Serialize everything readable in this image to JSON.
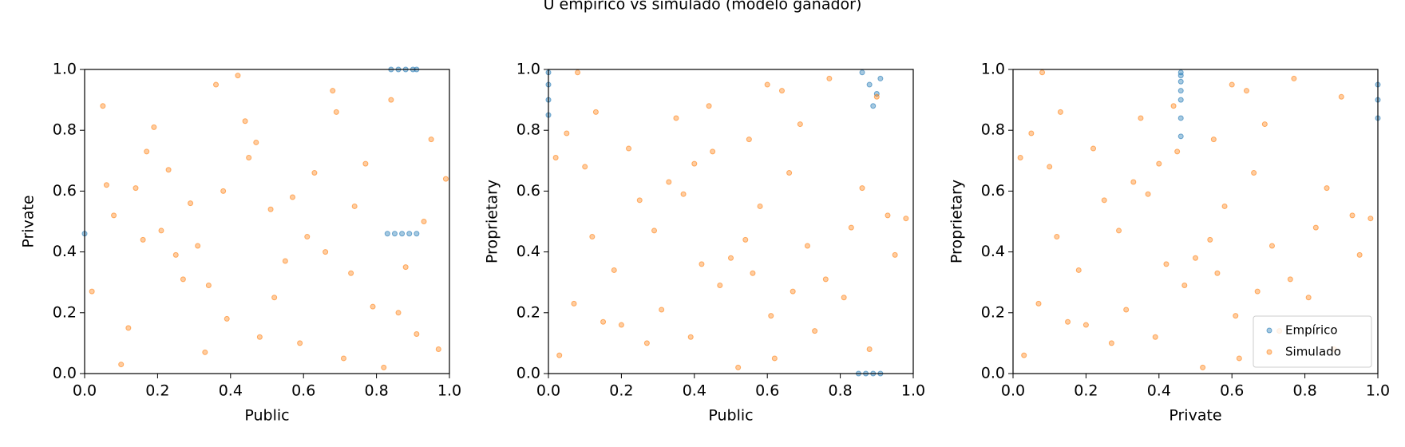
{
  "title": "U empírico vs simulado (modelo ganador)",
  "chart_data": [
    {
      "type": "scatter",
      "xlabel": "Public",
      "ylabel": "Private",
      "xlim": [
        0,
        1
      ],
      "ylim": [
        0,
        1
      ],
      "xticks": [
        {
          "value": 0,
          "label": "0.0"
        },
        {
          "value": 0.2,
          "label": "0.2"
        },
        {
          "value": 0.4,
          "label": "0.4"
        },
        {
          "value": 0.6,
          "label": "0.6"
        },
        {
          "value": 0.8,
          "label": "0.8"
        },
        {
          "value": 1,
          "label": "1.0"
        }
      ],
      "yticks": [
        {
          "value": 0,
          "label": "0.0"
        },
        {
          "value": 0.2,
          "label": "0.2"
        },
        {
          "value": 0.4,
          "label": "0.4"
        },
        {
          "value": 0.6,
          "label": "0.6"
        },
        {
          "value": 0.8,
          "label": "0.8"
        },
        {
          "value": 1,
          "label": "1.0"
        }
      ],
      "series": [
        {
          "name": "Empírico",
          "color": "#1f77b4",
          "x": [
            0.84,
            0.86,
            0.88,
            0.9,
            0.91,
            0.83,
            0.85,
            0.87,
            0.89,
            0.91,
            0
          ],
          "y": [
            1,
            1,
            1,
            1,
            1,
            0.46,
            0.46,
            0.46,
            0.46,
            0.46,
            0.46
          ]
        },
        {
          "name": "Simulado",
          "color": "#ff7f0e",
          "x": [
            0.05,
            0.12,
            0.23,
            0.31,
            0.44,
            0.52,
            0.63,
            0.71,
            0.88,
            0.95,
            0.08,
            0.17,
            0.27,
            0.36,
            0.48,
            0.57,
            0.66,
            0.79,
            0.84,
            0.97,
            0.02,
            0.14,
            0.21,
            0.39,
            0.45,
            0.55,
            0.69,
            0.74,
            0.91,
            0.99,
            0.1,
            0.19,
            0.29,
            0.34,
            0.42,
            0.59,
            0.61,
            0.77,
            0.86,
            0.93,
            0.06,
            0.25,
            0.33,
            0.47,
            0.51,
            0.68,
            0.73,
            0.82,
            0.16,
            0.38
          ],
          "y": [
            0.88,
            0.15,
            0.67,
            0.42,
            0.83,
            0.25,
            0.66,
            0.05,
            0.35,
            0.77,
            0.52,
            0.73,
            0.31,
            0.95,
            0.12,
            0.58,
            0.4,
            0.22,
            0.9,
            0.08,
            0.27,
            0.61,
            0.47,
            0.18,
            0.71,
            0.37,
            0.86,
            0.55,
            0.13,
            0.64,
            0.03,
            0.81,
            0.56,
            0.29,
            0.98,
            0.1,
            0.45,
            0.69,
            0.2,
            0.5,
            0.62,
            0.39,
            0.07,
            0.76,
            0.54,
            0.93,
            0.33,
            0.02,
            0.44,
            0.6
          ]
        }
      ]
    },
    {
      "type": "scatter",
      "xlabel": "Public",
      "ylabel": "Proprietary",
      "xlim": [
        0,
        1
      ],
      "ylim": [
        0,
        1
      ],
      "xticks": [
        {
          "value": 0,
          "label": "0.0"
        },
        {
          "value": 0.2,
          "label": "0.2"
        },
        {
          "value": 0.4,
          "label": "0.4"
        },
        {
          "value": 0.6,
          "label": "0.6"
        },
        {
          "value": 0.8,
          "label": "0.8"
        },
        {
          "value": 1,
          "label": "1.0"
        }
      ],
      "yticks": [
        {
          "value": 0,
          "label": "0.0"
        },
        {
          "value": 0.2,
          "label": "0.2"
        },
        {
          "value": 0.4,
          "label": "0.4"
        },
        {
          "value": 0.6,
          "label": "0.6"
        },
        {
          "value": 0.8,
          "label": "0.8"
        },
        {
          "value": 1,
          "label": "1.0"
        }
      ],
      "series": [
        {
          "name": "Empírico",
          "color": "#1f77b4",
          "x": [
            0,
            0,
            0,
            0,
            0.86,
            0.88,
            0.9,
            0.89,
            0.91,
            0.85,
            0.87,
            0.89,
            0.91
          ],
          "y": [
            0.85,
            0.9,
            0.95,
            0.99,
            0.99,
            0.95,
            0.92,
            0.88,
            0.97,
            0,
            0,
            0,
            0
          ]
        },
        {
          "name": "Simulado",
          "color": "#ff7f0e",
          "x": [
            0.62,
            0.39,
            0.07,
            0.76,
            0.54,
            0.93,
            0.33,
            0.02,
            0.44,
            0.6,
            0.88,
            0.15,
            0.67,
            0.42,
            0.83,
            0.25,
            0.66,
            0.05,
            0.35,
            0.77,
            0.52,
            0.73,
            0.31,
            0.95,
            0.12,
            0.58,
            0.4,
            0.22,
            0.9,
            0.08,
            0.27,
            0.61,
            0.47,
            0.18,
            0.71,
            0.37,
            0.86,
            0.55,
            0.13,
            0.64,
            0.03,
            0.81,
            0.56,
            0.29,
            0.98,
            0.1,
            0.45,
            0.69,
            0.2,
            0.5
          ],
          "y": [
            0.05,
            0.12,
            0.23,
            0.31,
            0.44,
            0.52,
            0.63,
            0.71,
            0.88,
            0.95,
            0.08,
            0.17,
            0.27,
            0.36,
            0.48,
            0.57,
            0.66,
            0.79,
            0.84,
            0.97,
            0.02,
            0.14,
            0.21,
            0.39,
            0.45,
            0.55,
            0.69,
            0.74,
            0.91,
            0.99,
            0.1,
            0.19,
            0.29,
            0.34,
            0.42,
            0.59,
            0.61,
            0.77,
            0.86,
            0.93,
            0.06,
            0.25,
            0.33,
            0.47,
            0.51,
            0.68,
            0.73,
            0.82,
            0.16,
            0.38
          ]
        }
      ]
    },
    {
      "type": "scatter",
      "xlabel": "Private",
      "ylabel": "Proprietary",
      "xlim": [
        0,
        1
      ],
      "ylim": [
        0,
        1
      ],
      "legend": "lower right",
      "xticks": [
        {
          "value": 0,
          "label": "0.0"
        },
        {
          "value": 0.2,
          "label": "0.2"
        },
        {
          "value": 0.4,
          "label": "0.4"
        },
        {
          "value": 0.6,
          "label": "0.6"
        },
        {
          "value": 0.8,
          "label": "0.8"
        },
        {
          "value": 1,
          "label": "1.0"
        }
      ],
      "yticks": [
        {
          "value": 0,
          "label": "0.0"
        },
        {
          "value": 0.2,
          "label": "0.2"
        },
        {
          "value": 0.4,
          "label": "0.4"
        },
        {
          "value": 0.6,
          "label": "0.6"
        },
        {
          "value": 0.8,
          "label": "0.8"
        },
        {
          "value": 1,
          "label": "1.0"
        }
      ],
      "series": [
        {
          "name": "Empírico",
          "color": "#1f77b4",
          "x": [
            0.46,
            0.46,
            0.46,
            0.46,
            0.46,
            0.46,
            0.46,
            1,
            1,
            1
          ],
          "y": [
            0.78,
            0.84,
            0.9,
            0.93,
            0.96,
            0.98,
            0.99,
            0.84,
            0.9,
            0.95
          ]
        },
        {
          "name": "Simulado",
          "color": "#ff7f0e",
          "x": [
            0.27,
            0.61,
            0.47,
            0.18,
            0.71,
            0.37,
            0.86,
            0.55,
            0.13,
            0.64,
            0.03,
            0.81,
            0.56,
            0.29,
            0.98,
            0.1,
            0.45,
            0.69,
            0.2,
            0.5,
            0.62,
            0.39,
            0.07,
            0.76,
            0.54,
            0.93,
            0.33,
            0.02,
            0.44,
            0.6,
            0.88,
            0.15,
            0.67,
            0.42,
            0.83,
            0.25,
            0.66,
            0.05,
            0.35,
            0.77,
            0.52,
            0.73,
            0.31,
            0.95,
            0.12,
            0.58,
            0.4,
            0.22,
            0.9,
            0.08
          ],
          "y": [
            0.1,
            0.19,
            0.29,
            0.34,
            0.42,
            0.59,
            0.61,
            0.77,
            0.86,
            0.93,
            0.06,
            0.25,
            0.33,
            0.47,
            0.51,
            0.68,
            0.73,
            0.82,
            0.16,
            0.38,
            0.05,
            0.12,
            0.23,
            0.31,
            0.44,
            0.52,
            0.63,
            0.71,
            0.88,
            0.95,
            0.08,
            0.17,
            0.27,
            0.36,
            0.48,
            0.57,
            0.66,
            0.79,
            0.84,
            0.97,
            0.02,
            0.14,
            0.21,
            0.39,
            0.45,
            0.55,
            0.69,
            0.74,
            0.91,
            0.99
          ]
        }
      ]
    }
  ]
}
